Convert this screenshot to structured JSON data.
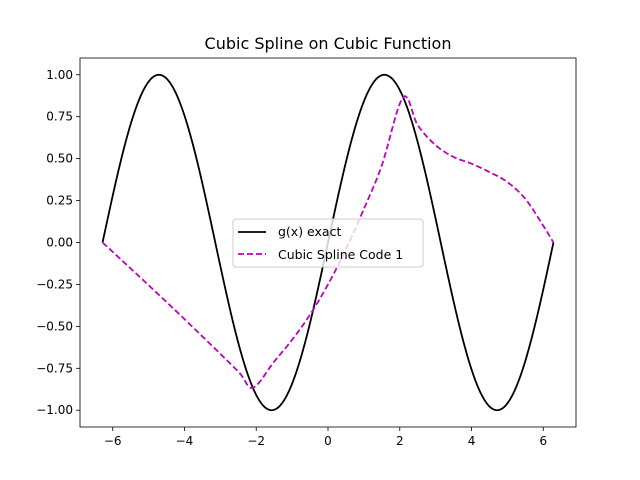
{
  "chart_data": {
    "type": "line",
    "title": "Cubic Spline on Cubic Function",
    "xlabel": "",
    "ylabel": "",
    "xlim": [
      -6.912,
      6.912
    ],
    "ylim": [
      -1.1,
      1.1
    ],
    "x_ticks": [
      -6,
      -4,
      -2,
      0,
      2,
      4,
      6
    ],
    "x_tick_labels": [
      "−6",
      "−4",
      "−2",
      "0",
      "2",
      "4",
      "6"
    ],
    "y_ticks": [
      -1.0,
      -0.75,
      -0.5,
      -0.25,
      0.0,
      0.25,
      0.5,
      0.75,
      1.0
    ],
    "y_tick_labels": [
      "−1.00",
      "−0.75",
      "−0.50",
      "−0.25",
      "0.00",
      "0.25",
      "0.50",
      "0.75",
      "1.00"
    ],
    "grid": false,
    "legend_position": "center",
    "series": [
      {
        "name": "g(x) exact",
        "style": "solid",
        "color": "#000000",
        "function": "sin",
        "x_start": -6.2832,
        "x_end": 6.2832,
        "x": [
          -6.283,
          -5.498,
          -4.712,
          -3.927,
          -3.142,
          -2.356,
          -1.571,
          -0.785,
          0.0,
          0.785,
          1.571,
          2.356,
          3.142,
          3.927,
          4.712,
          5.498,
          6.283
        ],
        "y": [
          0.0,
          0.707,
          1.0,
          0.707,
          0.0,
          -0.707,
          -1.0,
          -0.707,
          0.0,
          0.707,
          1.0,
          0.707,
          0.0,
          -0.707,
          -1.0,
          -0.707,
          0.0
        ]
      },
      {
        "name": "Cubic Spline Code 1",
        "style": "dashed",
        "color": "#bf00bf",
        "x": [
          -6.283,
          -5.5,
          -4.5,
          -3.5,
          -2.5,
          -2.094,
          -1.5,
          -1.0,
          -0.5,
          0.0,
          0.5,
          1.0,
          1.5,
          2.094,
          2.5,
          3.0,
          3.5,
          4.0,
          4.5,
          5.0,
          5.5,
          6.0,
          6.283
        ],
        "y": [
          0.0,
          -0.155,
          -0.355,
          -0.56,
          -0.77,
          -0.866,
          -0.71,
          -0.58,
          -0.43,
          -0.25,
          -0.04,
          0.2,
          0.46,
          0.866,
          0.7,
          0.58,
          0.51,
          0.47,
          0.42,
          0.36,
          0.26,
          0.1,
          0.0
        ]
      }
    ]
  }
}
